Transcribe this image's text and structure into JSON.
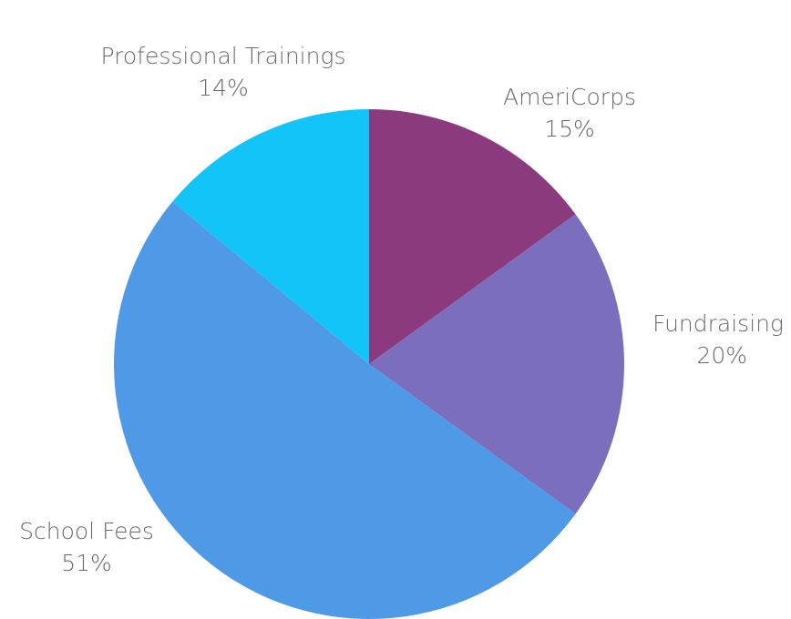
{
  "chart_data": {
    "type": "pie",
    "categories": [
      "AmeriCorps",
      "Fundraising",
      "School Fees",
      "Professional Trainings"
    ],
    "values": [
      15,
      20,
      51,
      14
    ],
    "value_labels": [
      "15%",
      "20%",
      "51%",
      "14%"
    ],
    "colors": [
      "#8b3a7e",
      "#7b6fbd",
      "#4f9ae6",
      "#12c4f7"
    ]
  }
}
